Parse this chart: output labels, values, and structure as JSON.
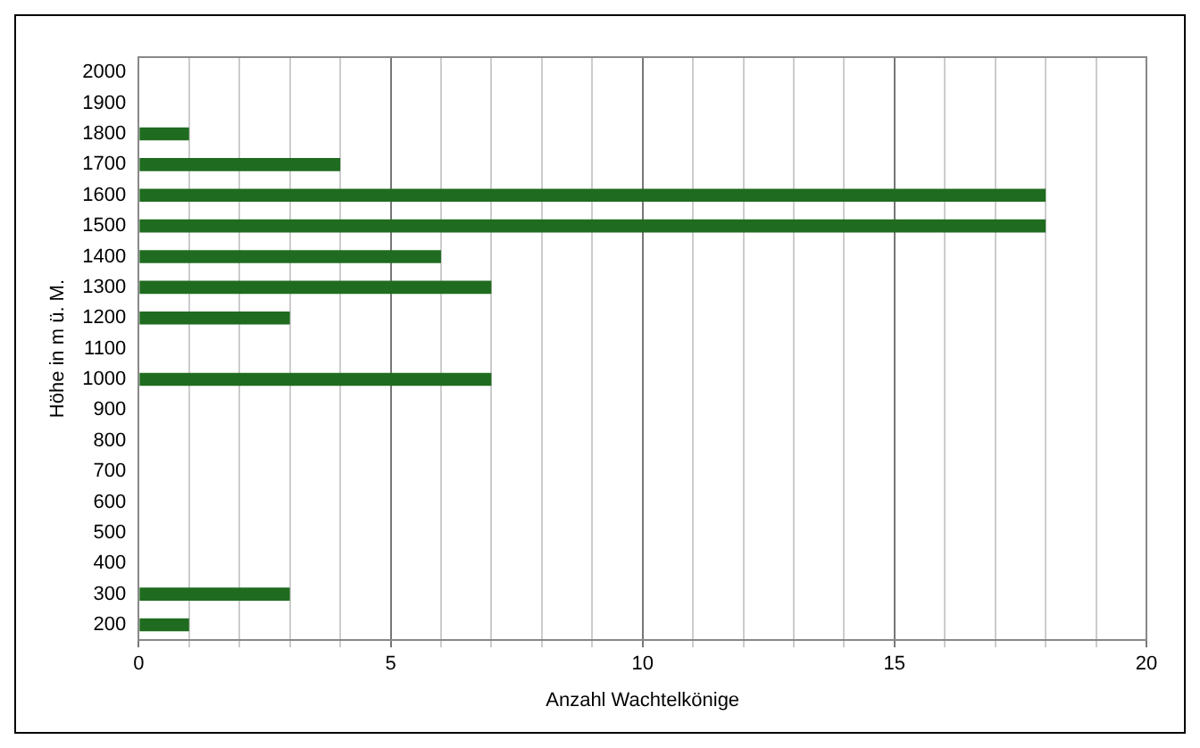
{
  "chart_data": {
    "type": "bar",
    "orientation": "horizontal",
    "xlabel": "Anzahl Wachtelkönige",
    "ylabel": "Höhe in m ü. M.",
    "categories": [
      "2000",
      "1900",
      "1800",
      "1700",
      "1600",
      "1500",
      "1400",
      "1300",
      "1200",
      "1100",
      "1000",
      "900",
      "800",
      "700",
      "600",
      "500",
      "400",
      "300",
      "200"
    ],
    "values": [
      0,
      0,
      1,
      4,
      18,
      18,
      6,
      7,
      3,
      0,
      7,
      0,
      0,
      0,
      0,
      0,
      0,
      3,
      1
    ],
    "color": "#1f6b1f",
    "xlim": [
      0,
      20
    ],
    "xticks": [
      0,
      {
        "value": 1,
        "label": null
      },
      {
        "value": 2,
        "label": null
      },
      {
        "value": 3,
        "label": null
      },
      {
        "value": 4,
        "label": null
      },
      5,
      {
        "value": 6,
        "label": null
      },
      {
        "value": 7,
        "label": null
      },
      {
        "value": 8,
        "label": null
      },
      {
        "value": 9,
        "label": null
      },
      10,
      {
        "value": 11,
        "label": null
      },
      {
        "value": 12,
        "label": null
      },
      {
        "value": 13,
        "label": null
      },
      {
        "value": 14,
        "label": null
      },
      15,
      {
        "value": 16,
        "label": null
      },
      {
        "value": 17,
        "label": null
      },
      {
        "value": 18,
        "label": null
      },
      {
        "value": 19,
        "label": null
      },
      20
    ],
    "grid": "x",
    "legend": false
  }
}
